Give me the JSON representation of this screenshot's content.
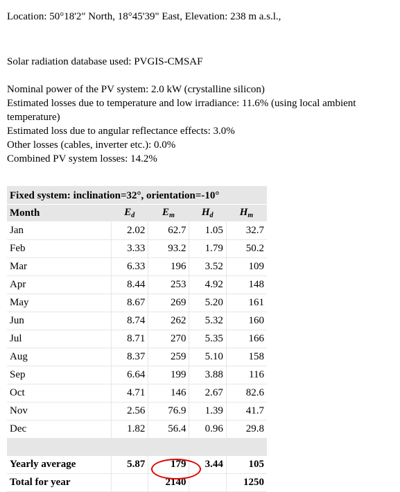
{
  "location": "Location: 50°18'2\" North, 18°45'39\" East, Elevation: 238 m a.s.l.,",
  "database": "Solar radiation database used: PVGIS-CMSAF",
  "info": [
    "Nominal power of the PV system: 2.0 kW (crystalline silicon)",
    "Estimated losses due to temperature and low irradiance: 11.6% (using local ambient temperature)",
    "Estimated loss due to angular reflectance effects: 3.0%",
    "Other losses (cables, inverter etc.): 0.0%",
    "Combined PV system losses: 14.2%"
  ],
  "table": {
    "caption": "Fixed system: inclination=32°, orientation=-10°",
    "headers": {
      "month": "Month",
      "ed": {
        "base": "E",
        "sub": "d"
      },
      "em": {
        "base": "E",
        "sub": "m"
      },
      "hd": {
        "base": "H",
        "sub": "d"
      },
      "hm": {
        "base": "H",
        "sub": "m"
      }
    },
    "rows": [
      {
        "month": "Jan",
        "ed": "2.02",
        "em": "62.7",
        "hd": "1.05",
        "hm": "32.7"
      },
      {
        "month": "Feb",
        "ed": "3.33",
        "em": "93.2",
        "hd": "1.79",
        "hm": "50.2"
      },
      {
        "month": "Mar",
        "ed": "6.33",
        "em": "196",
        "hd": "3.52",
        "hm": "109"
      },
      {
        "month": "Apr",
        "ed": "8.44",
        "em": "253",
        "hd": "4.92",
        "hm": "148"
      },
      {
        "month": "May",
        "ed": "8.67",
        "em": "269",
        "hd": "5.20",
        "hm": "161"
      },
      {
        "month": "Jun",
        "ed": "8.74",
        "em": "262",
        "hd": "5.32",
        "hm": "160"
      },
      {
        "month": "Jul",
        "ed": "8.71",
        "em": "270",
        "hd": "5.35",
        "hm": "166"
      },
      {
        "month": "Aug",
        "ed": "8.37",
        "em": "259",
        "hd": "5.10",
        "hm": "158"
      },
      {
        "month": "Sep",
        "ed": "6.64",
        "em": "199",
        "hd": "3.88",
        "hm": "116"
      },
      {
        "month": "Oct",
        "ed": "4.71",
        "em": "146",
        "hd": "2.67",
        "hm": "82.6"
      },
      {
        "month": "Nov",
        "ed": "2.56",
        "em": "76.9",
        "hd": "1.39",
        "hm": "41.7"
      },
      {
        "month": "Dec",
        "ed": "1.82",
        "em": "56.4",
        "hd": "0.96",
        "hm": "29.8"
      }
    ],
    "yearly_average": {
      "label": "Yearly average",
      "ed": "5.87",
      "em": "179",
      "hd": "3.44",
      "hm": "105"
    },
    "total": {
      "label": "Total for year",
      "em": "2140",
      "hm": "1250"
    }
  },
  "annotation_color": "#e00000"
}
